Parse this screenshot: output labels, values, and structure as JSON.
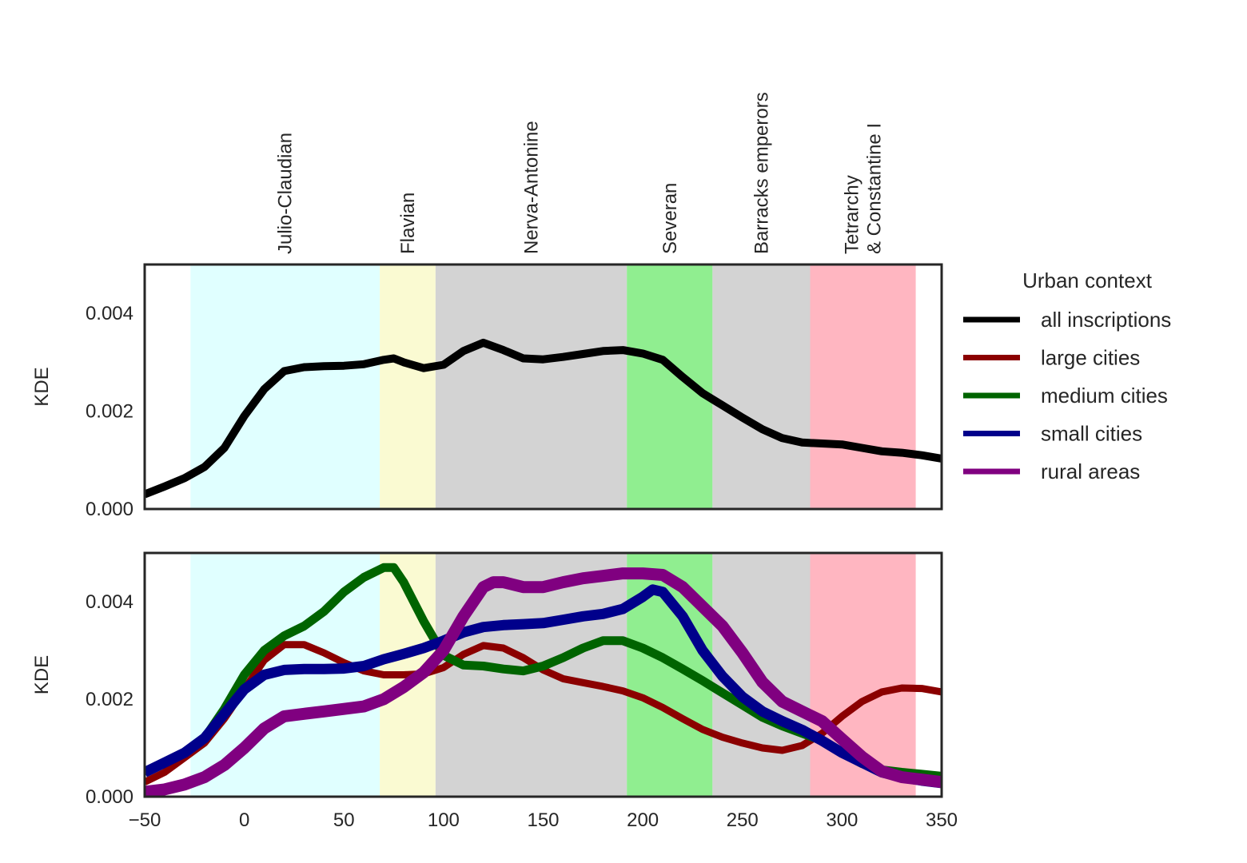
{
  "chart_data": {
    "type": "line",
    "x_ticks": [
      -50,
      0,
      50,
      100,
      150,
      200,
      250,
      300,
      350
    ],
    "xlim": [
      -50,
      350
    ],
    "periods": [
      {
        "label": "Julio-Claudian",
        "start": -27,
        "end": 68,
        "color": "#e0ffff"
      },
      {
        "label": "Flavian",
        "start": 68,
        "end": 96,
        "color": "#fafad2"
      },
      {
        "label": "Nerva-Antonine",
        "start": 96,
        "end": 192,
        "color": "#d3d3d3"
      },
      {
        "label": "Severan",
        "start": 192,
        "end": 235,
        "color": "#90ee90"
      },
      {
        "label": "Barracks emperors",
        "start": 235,
        "end": 284,
        "color": "#d3d3d3"
      },
      {
        "label": "Tetrarchy\n& Constantine I",
        "start": 284,
        "end": 337,
        "color": "#ffb6c1"
      }
    ],
    "legend": {
      "title": "Urban context",
      "placement": "right",
      "entries": [
        {
          "label": "all inscriptions",
          "color": "#000000"
        },
        {
          "label": "large cities",
          "color": "#8b0000"
        },
        {
          "label": "medium cities",
          "color": "#006400"
        },
        {
          "label": "small cities",
          "color": "#00008b"
        },
        {
          "label": "rural areas",
          "color": "#800080"
        }
      ]
    },
    "panels": [
      {
        "ylabel": "KDE",
        "ylim": [
          0,
          0.005
        ],
        "y_ticks": [
          "0.000",
          "0.002",
          "0.004"
        ],
        "y_tick_values": [
          0,
          0.002,
          0.004
        ],
        "series": [
          {
            "name": "all inscriptions",
            "color": "#000000",
            "x": [
              -50,
              -40,
              -30,
              -20,
              -10,
              0,
              10,
              20,
              30,
              40,
              50,
              60,
              70,
              75,
              80,
              90,
              100,
              110,
              120,
              130,
              140,
              150,
              160,
              170,
              180,
              190,
              200,
              210,
              220,
              230,
              240,
              250,
              260,
              270,
              280,
              290,
              300,
              310,
              320,
              330,
              340,
              350
            ],
            "y": [
              0.0003,
              0.00046,
              0.00063,
              0.00086,
              0.00125,
              0.0019,
              0.00245,
              0.00282,
              0.0029,
              0.00292,
              0.00293,
              0.00296,
              0.00305,
              0.00308,
              0.003,
              0.00288,
              0.00295,
              0.00323,
              0.0034,
              0.00325,
              0.00308,
              0.00306,
              0.00311,
              0.00317,
              0.00323,
              0.00325,
              0.00318,
              0.00305,
              0.0027,
              0.00237,
              0.00212,
              0.00187,
              0.00163,
              0.00145,
              0.00136,
              0.00134,
              0.00132,
              0.00125,
              0.00118,
              0.00115,
              0.0011,
              0.00103
            ]
          }
        ]
      },
      {
        "ylabel": "KDE",
        "ylim": [
          0,
          0.005
        ],
        "y_ticks": [
          "0.000",
          "0.002",
          "0.004"
        ],
        "y_tick_values": [
          0,
          0.002,
          0.004
        ],
        "series": [
          {
            "name": "large cities",
            "color": "#8b0000",
            "x": [
              -50,
              -40,
              -30,
              -20,
              -10,
              0,
              10,
              20,
              30,
              40,
              50,
              60,
              70,
              80,
              90,
              100,
              110,
              120,
              130,
              140,
              150,
              160,
              170,
              180,
              190,
              200,
              210,
              220,
              230,
              240,
              250,
              260,
              270,
              280,
              290,
              300,
              310,
              320,
              330,
              340,
              350
            ],
            "y": [
              0.0003,
              0.0005,
              0.0008,
              0.0011,
              0.0016,
              0.0022,
              0.0028,
              0.00312,
              0.00312,
              0.00295,
              0.00275,
              0.00258,
              0.0025,
              0.0025,
              0.00252,
              0.00265,
              0.00292,
              0.0031,
              0.00305,
              0.00285,
              0.0026,
              0.00242,
              0.00234,
              0.00226,
              0.00217,
              0.00203,
              0.00183,
              0.0016,
              0.00138,
              0.00122,
              0.0011,
              0.001,
              0.00095,
              0.00105,
              0.0013,
              0.00165,
              0.00195,
              0.00215,
              0.00223,
              0.00222,
              0.00215
            ]
          },
          {
            "name": "medium cities",
            "color": "#006400",
            "x": [
              -50,
              -40,
              -30,
              -20,
              -10,
              0,
              10,
              20,
              30,
              40,
              50,
              60,
              70,
              75,
              80,
              90,
              100,
              110,
              120,
              130,
              140,
              150,
              160,
              170,
              180,
              190,
              200,
              210,
              220,
              230,
              240,
              250,
              260,
              270,
              280,
              290,
              300,
              310,
              320,
              330,
              340,
              350
            ],
            "y": [
              0.0005,
              0.0007,
              0.0009,
              0.0012,
              0.0018,
              0.0025,
              0.003,
              0.0033,
              0.0035,
              0.0038,
              0.0042,
              0.0045,
              0.0047,
              0.0047,
              0.0044,
              0.0036,
              0.0029,
              0.0027,
              0.00268,
              0.00262,
              0.00258,
              0.00268,
              0.00285,
              0.00305,
              0.0032,
              0.0032,
              0.00305,
              0.00285,
              0.00262,
              0.00238,
              0.00213,
              0.00188,
              0.00163,
              0.00145,
              0.0013,
              0.00115,
              0.0009,
              0.00068,
              0.00055,
              0.0005,
              0.00046,
              0.00042
            ]
          },
          {
            "name": "small cities",
            "color": "#00008b",
            "x": [
              -50,
              -40,
              -30,
              -20,
              -10,
              0,
              10,
              20,
              30,
              40,
              50,
              60,
              70,
              80,
              90,
              100,
              110,
              120,
              130,
              140,
              150,
              160,
              170,
              180,
              190,
              200,
              205,
              210,
              220,
              230,
              240,
              250,
              260,
              270,
              280,
              290,
              300,
              310,
              320,
              330,
              340,
              350
            ],
            "y": [
              0.0005,
              0.0007,
              0.0009,
              0.0012,
              0.0017,
              0.0022,
              0.0025,
              0.0026,
              0.00262,
              0.00262,
              0.00263,
              0.00268,
              0.00282,
              0.00293,
              0.00305,
              0.0032,
              0.00337,
              0.00348,
              0.00352,
              0.00354,
              0.00356,
              0.00363,
              0.0037,
              0.00375,
              0.00385,
              0.0041,
              0.00425,
              0.0042,
              0.0037,
              0.003,
              0.00247,
              0.00205,
              0.00175,
              0.00155,
              0.00137,
              0.00115,
              0.0009,
              0.0007,
              0.0005,
              0.0004,
              0.00033,
              0.00028
            ]
          },
          {
            "name": "rural areas",
            "color": "#800080",
            "x": [
              -50,
              -40,
              -30,
              -20,
              -10,
              0,
              10,
              20,
              30,
              40,
              50,
              60,
              70,
              80,
              90,
              100,
              110,
              120,
              125,
              130,
              140,
              150,
              160,
              170,
              180,
              190,
              200,
              210,
              220,
              230,
              240,
              250,
              260,
              270,
              280,
              290,
              300,
              310,
              320,
              330,
              340,
              350
            ],
            "y": [
              0.0001,
              0.00015,
              0.00025,
              0.0004,
              0.00065,
              0.001,
              0.0014,
              0.00165,
              0.0017,
              0.00175,
              0.0018,
              0.00185,
              0.002,
              0.00225,
              0.00255,
              0.003,
              0.0037,
              0.0043,
              0.0044,
              0.0044,
              0.0043,
              0.0043,
              0.0044,
              0.00448,
              0.00453,
              0.00458,
              0.00458,
              0.00455,
              0.0043,
              0.0039,
              0.0035,
              0.00295,
              0.00235,
              0.00195,
              0.00175,
              0.00155,
              0.00118,
              0.00082,
              0.00052,
              0.0004,
              0.00035,
              0.0003
            ]
          }
        ]
      }
    ]
  }
}
